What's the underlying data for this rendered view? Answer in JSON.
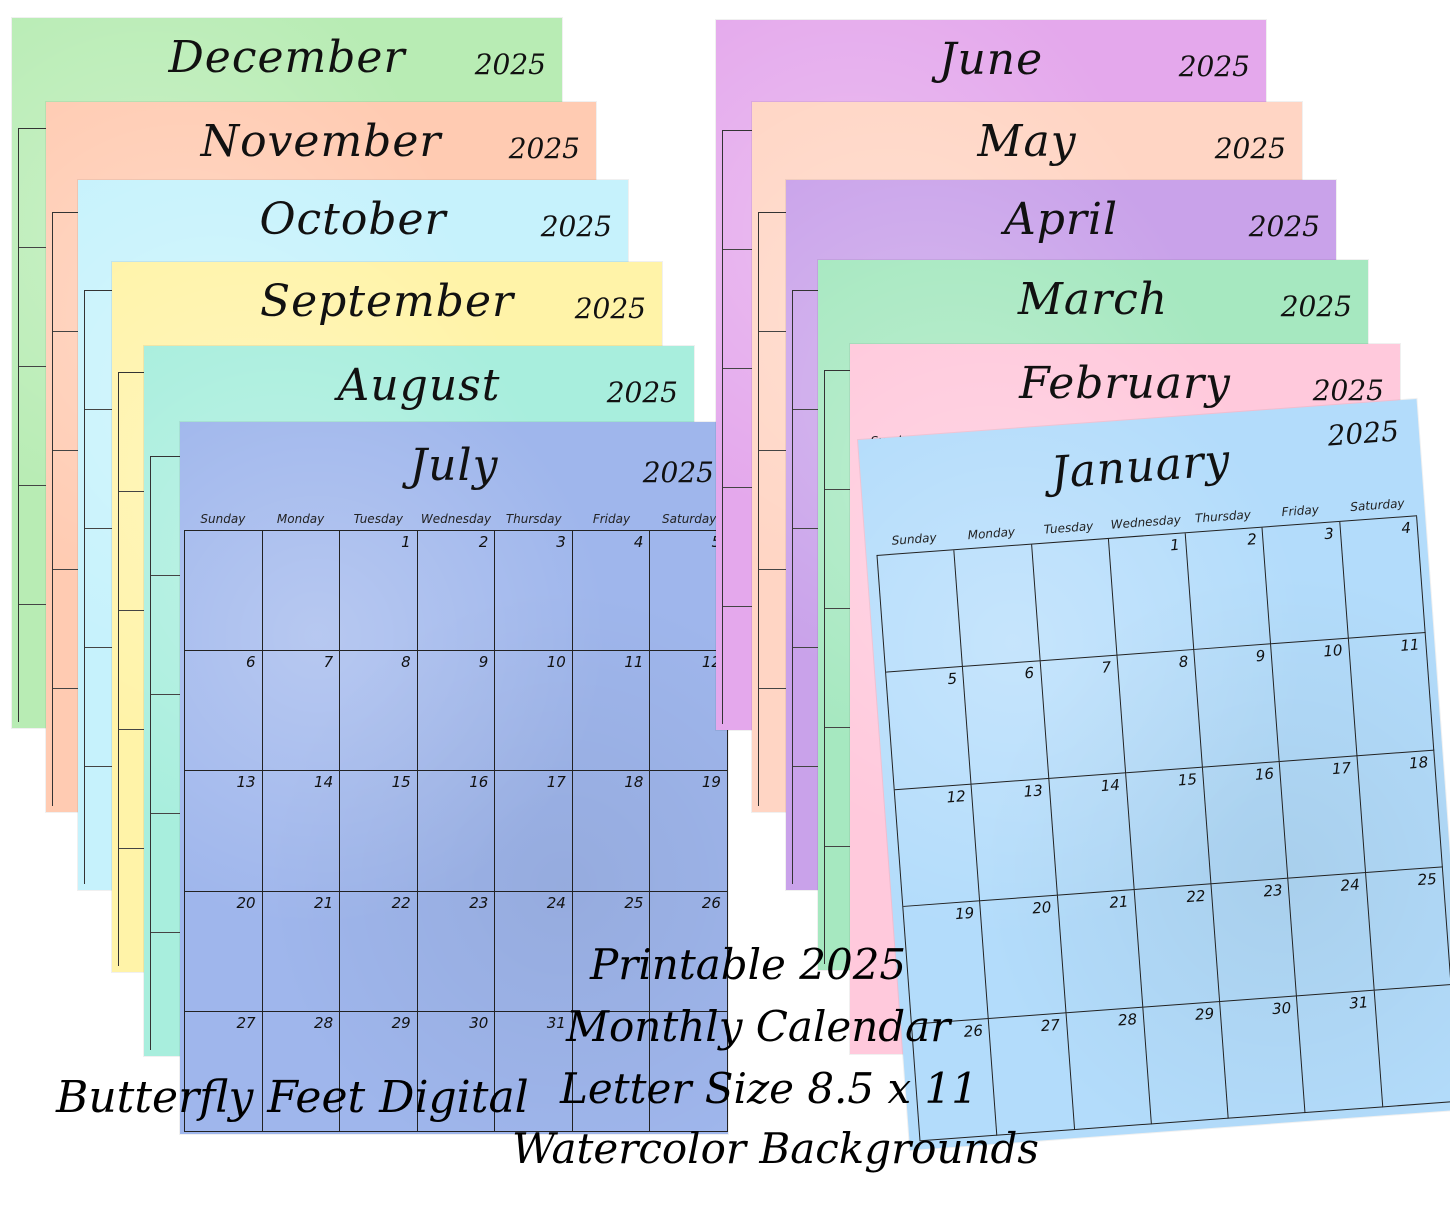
{
  "year": "2025",
  "weekdays": [
    "Sunday",
    "Monday",
    "Tuesday",
    "Wednesday",
    "Thursday",
    "Friday",
    "Saturday"
  ],
  "colors": {
    "december": "#b8ecb4",
    "november": "#ffcbb2",
    "october": "#c6f2fc",
    "september": "#fff3a8",
    "august": "#a8eedd",
    "july": "#9fb6ec",
    "june": "#e4a8ec",
    "may": "#ffd5c4",
    "april": "#c9a2ea",
    "march": "#a6e8c0",
    "february": "#ffc9dc",
    "january": "#b3dcfb"
  },
  "pages": {
    "december": "December",
    "november": "November",
    "october": "October",
    "september": "September",
    "august": "August",
    "july": "July",
    "june": "June",
    "may": "May",
    "april": "April",
    "march": "March",
    "february": "February",
    "january": "January"
  },
  "july_days": [
    "",
    "",
    "1",
    "2",
    "3",
    "4",
    "5",
    "6",
    "7",
    "8",
    "9",
    "10",
    "11",
    "12",
    "13",
    "14",
    "15",
    "16",
    "17",
    "18",
    "19",
    "20",
    "21",
    "22",
    "23",
    "24",
    "25",
    "26",
    "27",
    "28",
    "29",
    "30",
    "31",
    "",
    ""
  ],
  "january_days": [
    "",
    "",
    "",
    "1",
    "2",
    "3",
    "4",
    "5",
    "6",
    "7",
    "8",
    "9",
    "10",
    "11",
    "12",
    "13",
    "14",
    "15",
    "16",
    "17",
    "18",
    "19",
    "20",
    "21",
    "22",
    "23",
    "24",
    "25",
    "26",
    "27",
    "28",
    "29",
    "30",
    "31",
    ""
  ],
  "captions": {
    "brand": "Butterfly Feet Digital",
    "line1": "Printable 2025",
    "line2": "Monthly Calendar",
    "line3": "Letter Size 8.5 x 11",
    "line4": "Watercolor Backgrounds"
  }
}
